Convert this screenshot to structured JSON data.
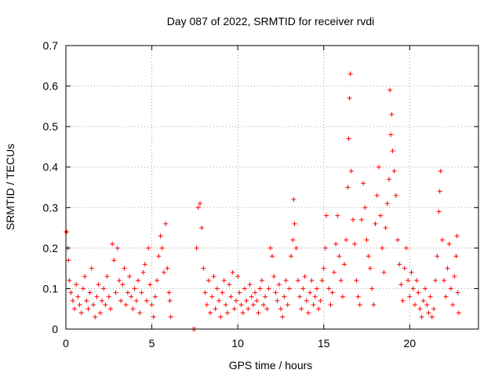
{
  "chart_data": {
    "type": "scatter",
    "title": "Day 087 of 2022, SRMTID for receiver rvdi",
    "xlabel": "GPS time / hours",
    "ylabel": "SRMTID / TECUs",
    "xlim": [
      0,
      24
    ],
    "ylim": [
      0,
      0.7
    ],
    "xticks": [
      0,
      5,
      10,
      15,
      20
    ],
    "yticks": [
      0,
      0.1,
      0.2,
      0.3,
      0.4,
      0.5,
      0.6,
      0.7
    ],
    "xtick_labels": [
      "0",
      "5",
      "10",
      "15",
      "20"
    ],
    "ytick_labels": [
      "0",
      "0.1",
      "0.2",
      "0.3",
      "0.4",
      "0.5",
      "0.6",
      "0.7"
    ],
    "grid": true,
    "marker": "+",
    "series": [
      {
        "name": "SRMTID",
        "color": "#ff0000",
        "points": [
          [
            0.0,
            0.24
          ],
          [
            0.05,
            0.24
          ],
          [
            0.1,
            0.2
          ],
          [
            0.15,
            0.17
          ],
          [
            0.2,
            0.12
          ],
          [
            0.3,
            0.09
          ],
          [
            0.4,
            0.07
          ],
          [
            0.5,
            0.05
          ],
          [
            0.6,
            0.11
          ],
          [
            0.7,
            0.08
          ],
          [
            0.8,
            0.06
          ],
          [
            0.9,
            0.04
          ],
          [
            1.0,
            0.1
          ],
          [
            1.1,
            0.13
          ],
          [
            1.2,
            0.07
          ],
          [
            1.3,
            0.05
          ],
          [
            1.4,
            0.09
          ],
          [
            1.5,
            0.15
          ],
          [
            1.6,
            0.06
          ],
          [
            1.7,
            0.03
          ],
          [
            1.8,
            0.08
          ],
          [
            1.9,
            0.11
          ],
          [
            2.0,
            0.04
          ],
          [
            2.1,
            0.07
          ],
          [
            2.2,
            0.1
          ],
          [
            2.3,
            0.06
          ],
          [
            2.4,
            0.13
          ],
          [
            2.5,
            0.08
          ],
          [
            2.6,
            0.05
          ],
          [
            2.7,
            0.21
          ],
          [
            2.8,
            0.17
          ],
          [
            2.9,
            0.09
          ],
          [
            3.0,
            0.2
          ],
          [
            3.1,
            0.12
          ],
          [
            3.2,
            0.07
          ],
          [
            3.3,
            0.11
          ],
          [
            3.4,
            0.15
          ],
          [
            3.5,
            0.06
          ],
          [
            3.6,
            0.09
          ],
          [
            3.7,
            0.13
          ],
          [
            3.8,
            0.08
          ],
          [
            3.9,
            0.05
          ],
          [
            4.0,
            0.1
          ],
          [
            4.1,
            0.07
          ],
          [
            4.2,
            0.12
          ],
          [
            4.3,
            0.04
          ],
          [
            4.4,
            0.09
          ],
          [
            4.5,
            0.14
          ],
          [
            4.6,
            0.16
          ],
          [
            4.7,
            0.07
          ],
          [
            4.8,
            0.2
          ],
          [
            4.9,
            0.11
          ],
          [
            5.0,
            0.06
          ],
          [
            5.1,
            0.03
          ],
          [
            5.2,
            0.08
          ],
          [
            5.3,
            0.12
          ],
          [
            5.4,
            0.18
          ],
          [
            5.5,
            0.23
          ],
          [
            5.6,
            0.2
          ],
          [
            5.7,
            0.14
          ],
          [
            5.8,
            0.26
          ],
          [
            5.9,
            0.15
          ],
          [
            6.0,
            0.09
          ],
          [
            6.05,
            0.07
          ],
          [
            6.1,
            0.03
          ],
          [
            7.4,
            0.0
          ],
          [
            7.5,
            0.0
          ],
          [
            7.6,
            0.2
          ],
          [
            7.7,
            0.3
          ],
          [
            7.8,
            0.31
          ],
          [
            7.9,
            0.25
          ],
          [
            8.0,
            0.15
          ],
          [
            8.1,
            0.09
          ],
          [
            8.2,
            0.06
          ],
          [
            8.3,
            0.12
          ],
          [
            8.4,
            0.04
          ],
          [
            8.5,
            0.08
          ],
          [
            8.6,
            0.13
          ],
          [
            8.7,
            0.05
          ],
          [
            8.8,
            0.1
          ],
          [
            8.9,
            0.07
          ],
          [
            9.0,
            0.03
          ],
          [
            9.1,
            0.09
          ],
          [
            9.2,
            0.12
          ],
          [
            9.3,
            0.06
          ],
          [
            9.4,
            0.04
          ],
          [
            9.5,
            0.11
          ],
          [
            9.6,
            0.08
          ],
          [
            9.7,
            0.14
          ],
          [
            9.8,
            0.05
          ],
          [
            9.9,
            0.07
          ],
          [
            10.0,
            0.13
          ],
          [
            10.1,
            0.09
          ],
          [
            10.2,
            0.06
          ],
          [
            10.3,
            0.04
          ],
          [
            10.4,
            0.1
          ],
          [
            10.5,
            0.07
          ],
          [
            10.6,
            0.05
          ],
          [
            10.7,
            0.11
          ],
          [
            10.8,
            0.08
          ],
          [
            10.9,
            0.06
          ],
          [
            11.0,
            0.09
          ],
          [
            11.1,
            0.07
          ],
          [
            11.2,
            0.04
          ],
          [
            11.3,
            0.1
          ],
          [
            11.4,
            0.12
          ],
          [
            11.5,
            0.06
          ],
          [
            11.6,
            0.08
          ],
          [
            11.7,
            0.05
          ],
          [
            11.8,
            0.1
          ],
          [
            11.9,
            0.2
          ],
          [
            12.0,
            0.18
          ],
          [
            12.1,
            0.13
          ],
          [
            12.2,
            0.09
          ],
          [
            12.3,
            0.07
          ],
          [
            12.4,
            0.11
          ],
          [
            12.5,
            0.05
          ],
          [
            12.6,
            0.03
          ],
          [
            12.7,
            0.08
          ],
          [
            12.8,
            0.12
          ],
          [
            12.9,
            0.06
          ],
          [
            13.0,
            0.1
          ],
          [
            13.1,
            0.18
          ],
          [
            13.2,
            0.22
          ],
          [
            13.3,
            0.26
          ],
          [
            13.25,
            0.32
          ],
          [
            13.4,
            0.2
          ],
          [
            13.5,
            0.12
          ],
          [
            13.6,
            0.08
          ],
          [
            13.7,
            0.05
          ],
          [
            13.8,
            0.1
          ],
          [
            13.9,
            0.13
          ],
          [
            14.0,
            0.07
          ],
          [
            14.1,
            0.04
          ],
          [
            14.2,
            0.09
          ],
          [
            14.3,
            0.12
          ],
          [
            14.4,
            0.06
          ],
          [
            14.5,
            0.08
          ],
          [
            14.6,
            0.1
          ],
          [
            14.7,
            0.05
          ],
          [
            14.8,
            0.07
          ],
          [
            14.9,
            0.12
          ],
          [
            15.0,
            0.15
          ],
          [
            15.1,
            0.2
          ],
          [
            15.15,
            0.28
          ],
          [
            15.3,
            0.1
          ],
          [
            15.4,
            0.06
          ],
          [
            15.5,
            0.09
          ],
          [
            15.6,
            0.14
          ],
          [
            15.7,
            0.21
          ],
          [
            15.8,
            0.28
          ],
          [
            15.9,
            0.18
          ],
          [
            16.0,
            0.12
          ],
          [
            16.1,
            0.08
          ],
          [
            16.2,
            0.16
          ],
          [
            16.3,
            0.22
          ],
          [
            16.4,
            0.35
          ],
          [
            16.45,
            0.47
          ],
          [
            16.5,
            0.57
          ],
          [
            16.55,
            0.63
          ],
          [
            16.6,
            0.39
          ],
          [
            16.7,
            0.27
          ],
          [
            16.8,
            0.21
          ],
          [
            16.9,
            0.12
          ],
          [
            17.0,
            0.08
          ],
          [
            17.1,
            0.06
          ],
          [
            17.2,
            0.27
          ],
          [
            17.3,
            0.36
          ],
          [
            17.4,
            0.3
          ],
          [
            17.5,
            0.22
          ],
          [
            17.6,
            0.18
          ],
          [
            17.7,
            0.15
          ],
          [
            17.8,
            0.1
          ],
          [
            17.9,
            0.06
          ],
          [
            18.0,
            0.26
          ],
          [
            18.1,
            0.33
          ],
          [
            18.2,
            0.4
          ],
          [
            18.3,
            0.28
          ],
          [
            18.4,
            0.2
          ],
          [
            18.5,
            0.14
          ],
          [
            18.6,
            0.25
          ],
          [
            18.7,
            0.31
          ],
          [
            18.8,
            0.37
          ],
          [
            18.9,
            0.48
          ],
          [
            18.95,
            0.53
          ],
          [
            18.85,
            0.59
          ],
          [
            19.0,
            0.44
          ],
          [
            19.1,
            0.39
          ],
          [
            19.2,
            0.33
          ],
          [
            19.3,
            0.22
          ],
          [
            19.4,
            0.16
          ],
          [
            19.5,
            0.11
          ],
          [
            19.6,
            0.07
          ],
          [
            19.7,
            0.15
          ],
          [
            19.8,
            0.2
          ],
          [
            19.9,
            0.12
          ],
          [
            20.0,
            0.08
          ],
          [
            20.1,
            0.14
          ],
          [
            20.2,
            0.1
          ],
          [
            20.3,
            0.06
          ],
          [
            20.4,
            0.12
          ],
          [
            20.5,
            0.09
          ],
          [
            20.6,
            0.05
          ],
          [
            20.7,
            0.03
          ],
          [
            20.8,
            0.07
          ],
          [
            20.9,
            0.1
          ],
          [
            21.0,
            0.06
          ],
          [
            21.1,
            0.04
          ],
          [
            21.2,
            0.08
          ],
          [
            21.3,
            0.03
          ],
          [
            21.4,
            0.05
          ],
          [
            21.5,
            0.12
          ],
          [
            21.6,
            0.18
          ],
          [
            21.7,
            0.29
          ],
          [
            21.75,
            0.34
          ],
          [
            21.8,
            0.39
          ],
          [
            21.9,
            0.22
          ],
          [
            22.0,
            0.12
          ],
          [
            22.1,
            0.08
          ],
          [
            22.2,
            0.15
          ],
          [
            22.3,
            0.21
          ],
          [
            22.4,
            0.1
          ],
          [
            22.5,
            0.06
          ],
          [
            22.6,
            0.13
          ],
          [
            22.7,
            0.18
          ],
          [
            22.75,
            0.23
          ],
          [
            22.8,
            0.09
          ],
          [
            22.85,
            0.04
          ]
        ]
      }
    ]
  }
}
